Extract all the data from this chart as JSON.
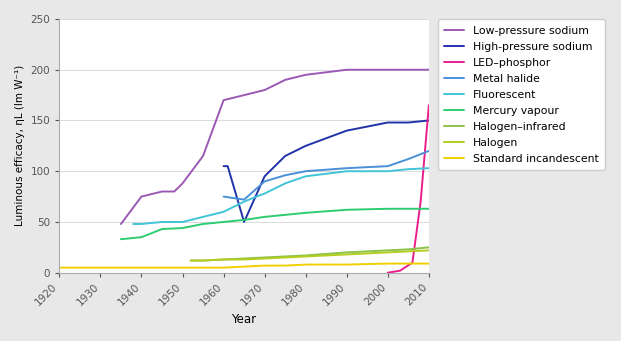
{
  "series": [
    {
      "label": "Low-pressure sodium",
      "color": "#9b59b6",
      "x": [
        1935,
        1940,
        1945,
        1948,
        1950,
        1955,
        1960,
        1965,
        1970,
        1975,
        1980,
        1990,
        2000,
        2010
      ],
      "y": [
        48,
        75,
        80,
        80,
        88,
        115,
        170,
        175,
        180,
        190,
        195,
        200,
        200,
        200
      ]
    },
    {
      "label": "High-pressure sodium",
      "color": "#2233aa",
      "x": [
        1960,
        1961,
        1965,
        1970,
        1975,
        1980,
        1990,
        2000,
        2005,
        2010
      ],
      "y": [
        105,
        105,
        50,
        95,
        115,
        125,
        140,
        148,
        148,
        150
      ]
    },
    {
      "label": "LED–phosphor",
      "color": "#e91e8c",
      "x": [
        2000,
        2003,
        2006,
        2008,
        2010
      ],
      "y": [
        0,
        2,
        10,
        70,
        165
      ]
    },
    {
      "label": "Metal halide",
      "color": "#4a90d9",
      "x": [
        1960,
        1965,
        1970,
        1975,
        1980,
        1990,
        2000,
        2005,
        2010
      ],
      "y": [
        75,
        72,
        90,
        96,
        100,
        103,
        105,
        112,
        120
      ]
    },
    {
      "label": "Fluorescent",
      "color": "#40c4d8",
      "x": [
        1938,
        1940,
        1945,
        1950,
        1955,
        1960,
        1965,
        1968,
        1970,
        1975,
        1980,
        1990,
        2000,
        2005,
        2010
      ],
      "y": [
        48,
        48,
        50,
        50,
        55,
        60,
        70,
        75,
        78,
        88,
        95,
        100,
        100,
        102,
        103
      ]
    },
    {
      "label": "Mercury vapour",
      "color": "#2ecc71",
      "x": [
        1935,
        1940,
        1945,
        1950,
        1955,
        1960,
        1965,
        1970,
        1975,
        1980,
        1990,
        2000,
        2010
      ],
      "y": [
        33,
        35,
        43,
        44,
        48,
        50,
        52,
        55,
        57,
        59,
        62,
        63,
        63
      ]
    },
    {
      "label": "Halogen–infrared",
      "color": "#8bc34a",
      "x": [
        1952,
        1955,
        1960,
        1965,
        1970,
        1975,
        1980,
        1990,
        2000,
        2005,
        2010
      ],
      "y": [
        12,
        12,
        13,
        14,
        15,
        16,
        17,
        20,
        22,
        23,
        25
      ]
    },
    {
      "label": "Halogen",
      "color": "#b5cc20",
      "x": [
        1952,
        1955,
        1960,
        1965,
        1970,
        1975,
        1980,
        1990,
        2000,
        2005,
        2010
      ],
      "y": [
        12,
        12,
        13,
        13,
        14,
        15,
        16,
        18,
        20,
        21,
        22
      ]
    },
    {
      "label": "Standard incandescent",
      "color": "#f0d000",
      "x": [
        1920,
        1930,
        1935,
        1940,
        1945,
        1950,
        1955,
        1960,
        1965,
        1970,
        1975,
        1980,
        1990,
        2000,
        2010
      ],
      "y": [
        5,
        5,
        5,
        5,
        5,
        5,
        5,
        5,
        6,
        7,
        7,
        8,
        8,
        9,
        9
      ]
    }
  ],
  "xlabel": "Year",
  "ylabel": "Luminous efficacy, ηL (lm W⁻¹)",
  "xlim": [
    1920,
    2010
  ],
  "ylim": [
    0,
    250
  ],
  "yticks": [
    0,
    50,
    100,
    150,
    200,
    250
  ],
  "xticks": [
    1920,
    1930,
    1940,
    1950,
    1960,
    1970,
    1980,
    1990,
    2000,
    2010
  ],
  "figure_bg": "#e8e8e8",
  "plot_bg": "#ffffff",
  "linewidth": 1.4,
  "legend_fontsize": 7.8,
  "tick_fontsize": 7.5,
  "label_fontsize": 8.5
}
